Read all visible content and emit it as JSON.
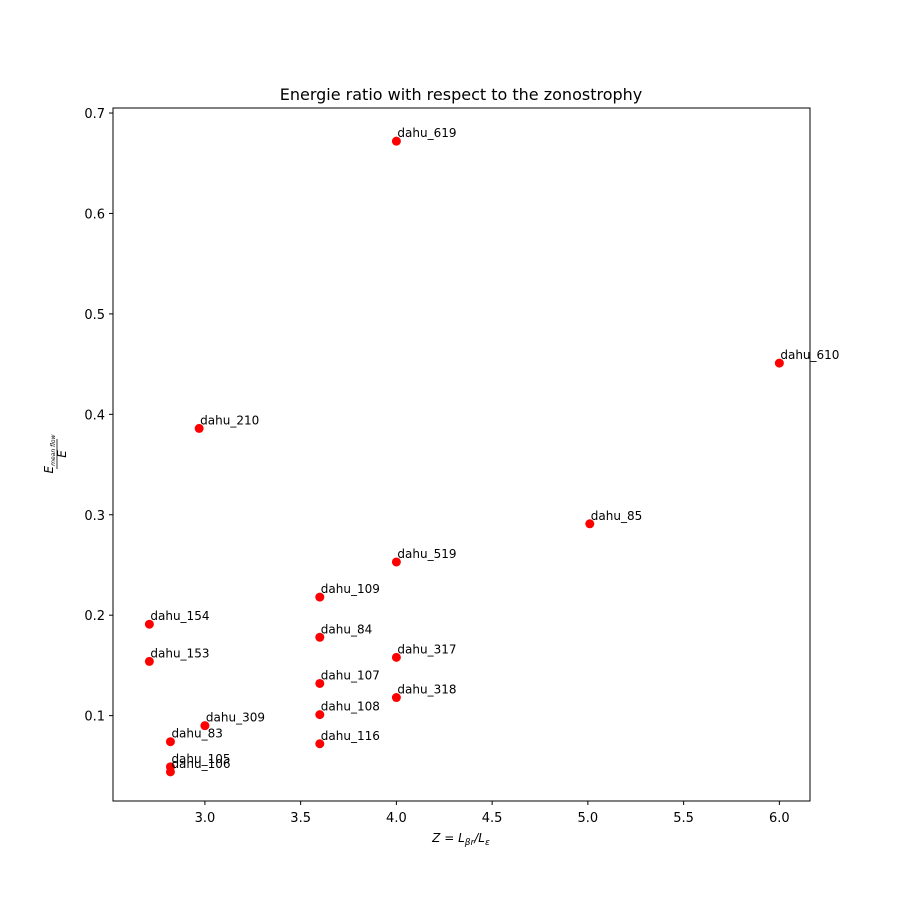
{
  "chart_data": {
    "type": "scatter",
    "title": "Energie ratio with respect to the zonostrophy",
    "xlabel": {
      "main": "Z = L",
      "sub1": "βr",
      "mid": "/L",
      "sub2": "ε"
    },
    "ylabel": {
      "numerator_main": "E",
      "numerator_sub": "mean flow",
      "denominator": "E"
    },
    "xlim": [
      2.52,
      6.16
    ],
    "ylim": [
      0.015,
      0.705
    ],
    "xticks": [
      3.0,
      3.5,
      4.0,
      4.5,
      5.0,
      5.5,
      6.0
    ],
    "xtick_labels": [
      "3.0",
      "3.5",
      "4.0",
      "4.5",
      "5.0",
      "5.5",
      "6.0"
    ],
    "yticks": [
      0.1,
      0.2,
      0.3,
      0.4,
      0.5,
      0.6,
      0.7
    ],
    "ytick_labels": [
      "0.1",
      "0.2",
      "0.3",
      "0.4",
      "0.5",
      "0.6",
      "0.7"
    ],
    "grid": false,
    "marker_color": "#ff0000",
    "points": [
      {
        "label": "dahu_619",
        "x": 4.0,
        "y": 0.672
      },
      {
        "label": "dahu_610",
        "x": 6.0,
        "y": 0.451
      },
      {
        "label": "dahu_210",
        "x": 2.97,
        "y": 0.386
      },
      {
        "label": "dahu_85",
        "x": 5.01,
        "y": 0.291
      },
      {
        "label": "dahu_519",
        "x": 4.0,
        "y": 0.253
      },
      {
        "label": "dahu_109",
        "x": 3.6,
        "y": 0.218
      },
      {
        "label": "dahu_154",
        "x": 2.71,
        "y": 0.191
      },
      {
        "label": "dahu_84",
        "x": 3.6,
        "y": 0.178
      },
      {
        "label": "dahu_317",
        "x": 4.0,
        "y": 0.158
      },
      {
        "label": "dahu_153",
        "x": 2.71,
        "y": 0.154
      },
      {
        "label": "dahu_107",
        "x": 3.6,
        "y": 0.132
      },
      {
        "label": "dahu_318",
        "x": 4.0,
        "y": 0.118
      },
      {
        "label": "dahu_108",
        "x": 3.6,
        "y": 0.101
      },
      {
        "label": "dahu_309",
        "x": 3.0,
        "y": 0.09
      },
      {
        "label": "dahu_83",
        "x": 2.82,
        "y": 0.074
      },
      {
        "label": "dahu_116",
        "x": 3.6,
        "y": 0.072
      },
      {
        "label": "dahu_105",
        "x": 2.82,
        "y": 0.049
      },
      {
        "label": "dahu_106",
        "x": 2.82,
        "y": 0.044
      }
    ]
  }
}
